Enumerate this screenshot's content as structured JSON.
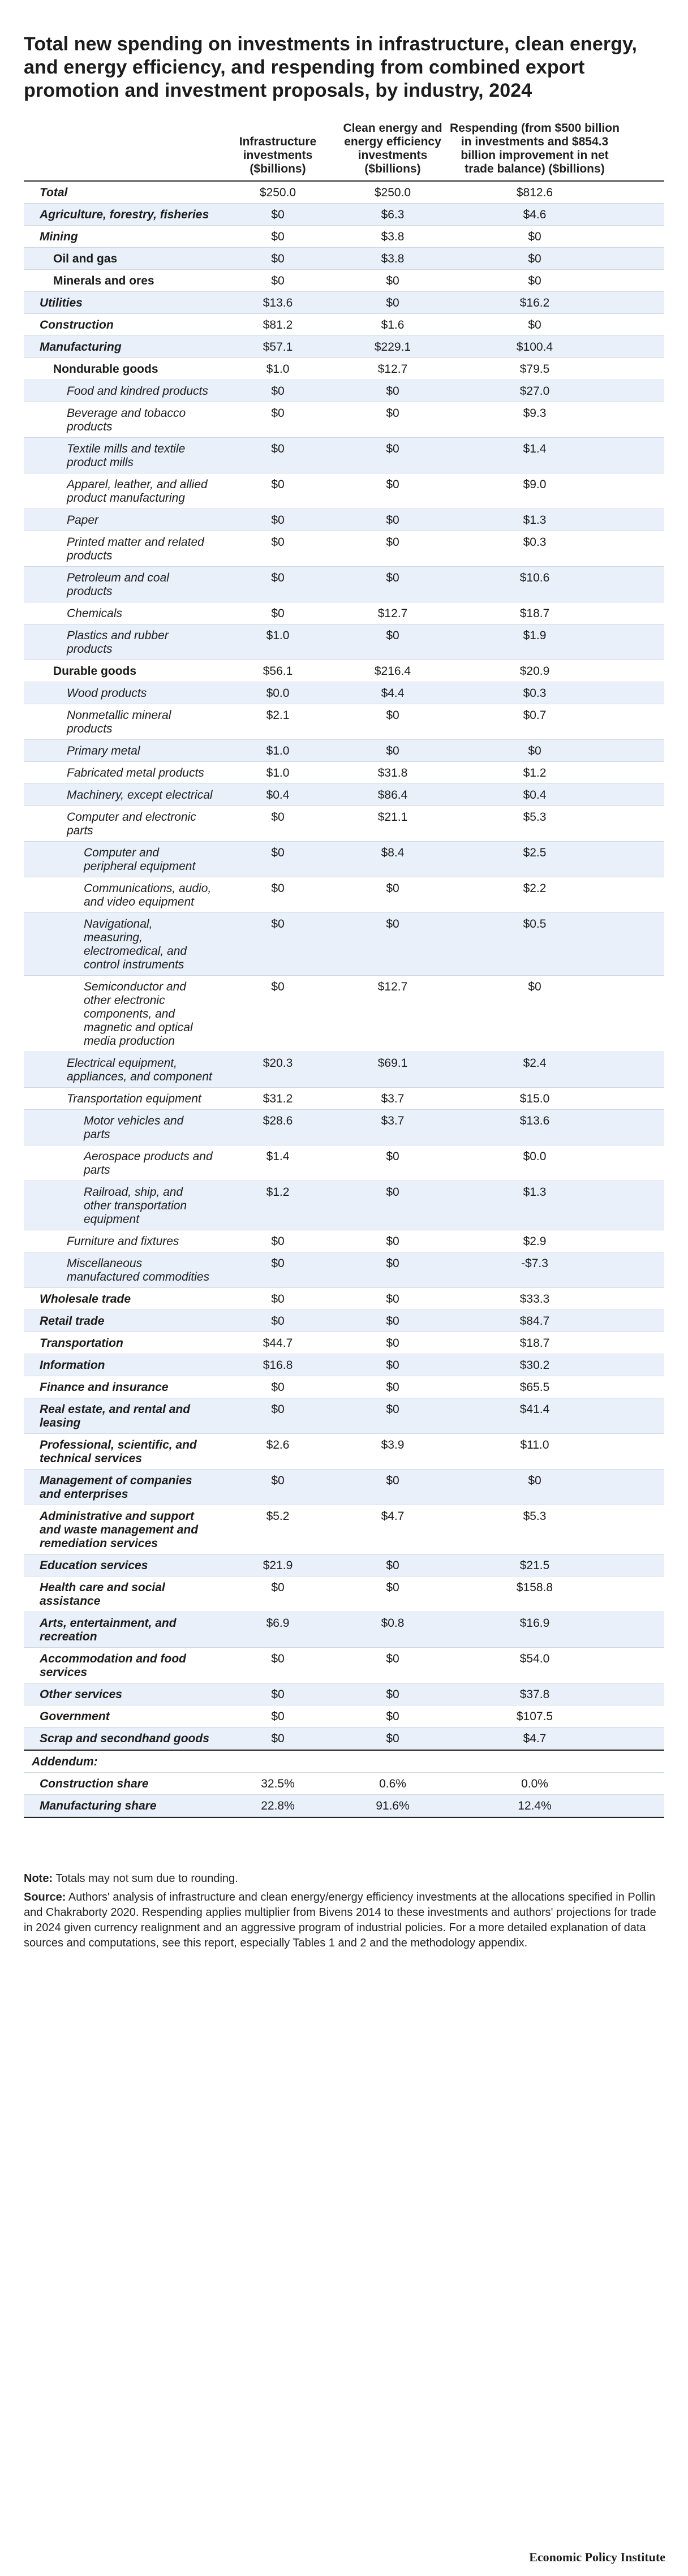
{
  "title": "Total new spending on investments in infrastructure, clean energy, and energy efficiency, and respending from combined export promotion and investment proposals, by industry, 2024",
  "columns": {
    "infra": "Infrastructure investments ($billions)",
    "clean": "Clean energy and energy efficiency investments ($billions)",
    "resp": "Respending (from $500 billion in investments and $854.3 billion improvement in net trade balance) ($billions)"
  },
  "rows": [
    {
      "level": 0,
      "label": "Total",
      "infra": "$250.0",
      "clean": "$250.0",
      "resp": "$812.6"
    },
    {
      "level": 0,
      "label": "Agriculture, forestry, fisheries",
      "infra": "$0",
      "clean": "$6.3",
      "resp": "$4.6"
    },
    {
      "level": 0,
      "label": "Mining",
      "infra": "$0",
      "clean": "$3.8",
      "resp": "$0"
    },
    {
      "level": 1,
      "label": "Oil and gas",
      "infra": "$0",
      "clean": "$3.8",
      "resp": "$0"
    },
    {
      "level": 1,
      "label": "Minerals and ores",
      "infra": "$0",
      "clean": "$0",
      "resp": "$0"
    },
    {
      "level": 0,
      "label": "Utilities",
      "infra": "$13.6",
      "clean": "$0",
      "resp": "$16.2"
    },
    {
      "level": 0,
      "label": "Construction",
      "infra": "$81.2",
      "clean": "$1.6",
      "resp": "$0"
    },
    {
      "level": 0,
      "label": "Manufacturing",
      "infra": "$57.1",
      "clean": "$229.1",
      "resp": "$100.4"
    },
    {
      "level": 1,
      "label": "Nondurable goods",
      "infra": "$1.0",
      "clean": "$12.7",
      "resp": "$79.5"
    },
    {
      "level": 2,
      "label": "Food and kindred products",
      "infra": "$0",
      "clean": "$0",
      "resp": "$27.0"
    },
    {
      "level": 2,
      "label": "Beverage and tobacco products",
      "infra": "$0",
      "clean": "$0",
      "resp": "$9.3"
    },
    {
      "level": 2,
      "label": "Textile mills and textile product mills",
      "infra": "$0",
      "clean": "$0",
      "resp": "$1.4"
    },
    {
      "level": 2,
      "label": "Apparel, leather, and allied product manufacturing",
      "infra": "$0",
      "clean": "$0",
      "resp": "$9.0"
    },
    {
      "level": 2,
      "label": "Paper",
      "infra": "$0",
      "clean": "$0",
      "resp": "$1.3"
    },
    {
      "level": 2,
      "label": "Printed matter and related products",
      "infra": "$0",
      "clean": "$0",
      "resp": "$0.3"
    },
    {
      "level": 2,
      "label": "Petroleum and coal products",
      "infra": "$0",
      "clean": "$0",
      "resp": "$10.6"
    },
    {
      "level": 2,
      "label": "Chemicals",
      "infra": "$0",
      "clean": "$12.7",
      "resp": "$18.7"
    },
    {
      "level": 2,
      "label": "Plastics and rubber products",
      "infra": "$1.0",
      "clean": "$0",
      "resp": "$1.9"
    },
    {
      "level": 1,
      "label": "Durable goods",
      "infra": "$56.1",
      "clean": "$216.4",
      "resp": "$20.9"
    },
    {
      "level": 2,
      "label": "Wood products",
      "infra": "$0.0",
      "clean": "$4.4",
      "resp": "$0.3"
    },
    {
      "level": 2,
      "label": "Nonmetallic mineral products",
      "infra": "$2.1",
      "clean": "$0",
      "resp": "$0.7"
    },
    {
      "level": 2,
      "label": "Primary metal",
      "infra": "$1.0",
      "clean": "$0",
      "resp": "$0"
    },
    {
      "level": 2,
      "label": "Fabricated metal products",
      "infra": "$1.0",
      "clean": "$31.8",
      "resp": "$1.2"
    },
    {
      "level": 2,
      "label": "Machinery, except electrical",
      "infra": "$0.4",
      "clean": "$86.4",
      "resp": "$0.4"
    },
    {
      "level": 2,
      "label": "Computer and electronic parts",
      "infra": "$0",
      "clean": "$21.1",
      "resp": "$5.3"
    },
    {
      "level": 3,
      "label": "Computer and peripheral equipment",
      "infra": "$0",
      "clean": "$8.4",
      "resp": "$2.5"
    },
    {
      "level": 3,
      "label": "Communications, audio, and video equipment",
      "infra": "$0",
      "clean": "$0",
      "resp": "$2.2"
    },
    {
      "level": 3,
      "label": "Navigational, measuring, electromedical, and control instruments",
      "infra": "$0",
      "clean": "$0",
      "resp": "$0.5"
    },
    {
      "level": 3,
      "label": "Semiconductor and other electronic components, and magnetic and optical media production",
      "infra": "$0",
      "clean": "$12.7",
      "resp": "$0"
    },
    {
      "level": 2,
      "label": "Electrical equipment, appliances, and component",
      "infra": "$20.3",
      "clean": "$69.1",
      "resp": "$2.4"
    },
    {
      "level": 2,
      "label": "Transportation equipment",
      "infra": "$31.2",
      "clean": "$3.7",
      "resp": "$15.0"
    },
    {
      "level": 3,
      "label": "Motor vehicles and parts",
      "infra": "$28.6",
      "clean": "$3.7",
      "resp": "$13.6"
    },
    {
      "level": 3,
      "label": "Aerospace products and parts",
      "infra": "$1.4",
      "clean": "$0",
      "resp": "$0.0"
    },
    {
      "level": 3,
      "label": "Railroad, ship, and other transportation equipment",
      "infra": "$1.2",
      "clean": "$0",
      "resp": "$1.3"
    },
    {
      "level": 2,
      "label": "Furniture and fixtures",
      "infra": "$0",
      "clean": "$0",
      "resp": "$2.9"
    },
    {
      "level": 2,
      "label": "Miscellaneous manufactured commodities",
      "infra": "$0",
      "clean": "$0",
      "resp": "-$7.3"
    },
    {
      "level": 0,
      "label": "Wholesale trade",
      "infra": "$0",
      "clean": "$0",
      "resp": "$33.3"
    },
    {
      "level": 0,
      "label": "Retail trade",
      "infra": "$0",
      "clean": "$0",
      "resp": "$84.7"
    },
    {
      "level": 0,
      "label": "Transportation",
      "infra": "$44.7",
      "clean": "$0",
      "resp": "$18.7"
    },
    {
      "level": 0,
      "label": "Information",
      "infra": "$16.8",
      "clean": "$0",
      "resp": "$30.2"
    },
    {
      "level": 0,
      "label": "Finance and insurance",
      "infra": "$0",
      "clean": "$0",
      "resp": "$65.5"
    },
    {
      "level": 0,
      "label": "Real estate, and rental and leasing",
      "infra": "$0",
      "clean": "$0",
      "resp": "$41.4"
    },
    {
      "level": 0,
      "label": "Professional, scientific, and technical services",
      "infra": "$2.6",
      "clean": "$3.9",
      "resp": "$11.0"
    },
    {
      "level": 0,
      "label": "Management of companies and enterprises",
      "infra": "$0",
      "clean": "$0",
      "resp": "$0"
    },
    {
      "level": 0,
      "label": "Administrative and support and waste management and remediation services",
      "infra": "$5.2",
      "clean": "$4.7",
      "resp": "$5.3"
    },
    {
      "level": 0,
      "label": "Education services",
      "infra": "$21.9",
      "clean": "$0",
      "resp": "$21.5"
    },
    {
      "level": 0,
      "label": "Health care and social assistance",
      "infra": "$0",
      "clean": "$0",
      "resp": "$158.8"
    },
    {
      "level": 0,
      "label": "Arts, entertainment, and recreation",
      "infra": "$6.9",
      "clean": "$0.8",
      "resp": "$16.9"
    },
    {
      "level": 0,
      "label": "Accommodation and food services",
      "infra": "$0",
      "clean": "$0",
      "resp": "$54.0"
    },
    {
      "level": 0,
      "label": "Other services",
      "infra": "$0",
      "clean": "$0",
      "resp": "$37.8"
    },
    {
      "level": 0,
      "label": "Government",
      "infra": "$0",
      "clean": "$0",
      "resp": "$107.5"
    },
    {
      "level": 0,
      "label": "Scrap and secondhand goods",
      "infra": "$0",
      "clean": "$0",
      "resp": "$4.7"
    }
  ],
  "addendum": {
    "label": "Addendum:",
    "rows": [
      {
        "label": "Construction share",
        "infra": "32.5%",
        "clean": "0.6%",
        "resp": "0.0%"
      },
      {
        "label": "Manufacturing share",
        "infra": "22.8%",
        "clean": "91.6%",
        "resp": "12.4%"
      }
    ]
  },
  "footer": {
    "note_label": "Note:",
    "note_text": "Totals may not sum due to rounding.",
    "source_label": "Source:",
    "source_text": "Authors' analysis of infrastructure and clean energy/energy efficiency investments at the allocations specified in Pollin and Chakraborty 2020. Respending applies multiplier from Bivens 2014 to these investments and authors' projections for trade in 2024 given currency realignment and an aggressive program of industrial policies. For a more detailed explanation of data sources and computations, see this report, especially Tables 1 and 2 and the methodology appendix."
  },
  "brand": "Economic Policy Institute"
}
